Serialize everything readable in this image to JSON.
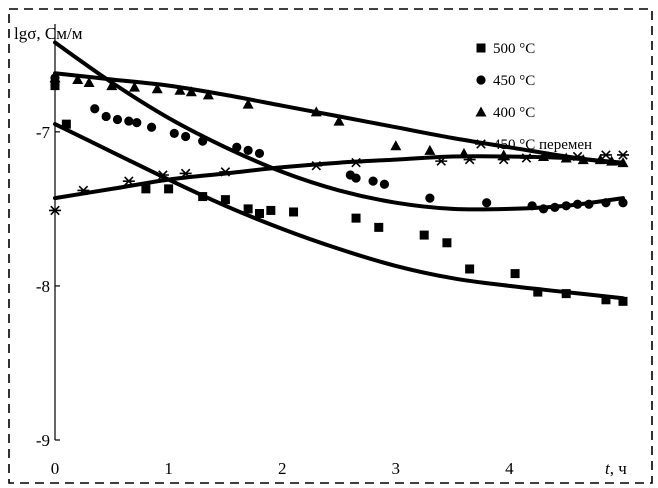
{
  "chart_data": {
    "type": "scatter",
    "title": "",
    "ylabel": "lgσ, См/м",
    "xlabel": "t, ч",
    "xlabel_var": "t",
    "xlabel_unit": ", ч",
    "xlim": [
      0,
      5
    ],
    "ylim": [
      -9,
      -6.3
    ],
    "x_ticks": [
      0,
      1,
      2,
      3,
      4
    ],
    "x_tick_labels": [
      "0",
      "1",
      "2",
      "3",
      "4"
    ],
    "y_ticks": [
      -7,
      -8,
      -9
    ],
    "y_tick_labels": [
      "-7",
      "-8",
      "-9"
    ],
    "grid": false,
    "legend_position": "top-right",
    "series": [
      {
        "name": "500 °C",
        "marker": "square",
        "points": [
          [
            0,
            -6.7
          ],
          [
            0.1,
            -6.95
          ],
          [
            0.8,
            -7.37
          ],
          [
            1.0,
            -7.37
          ],
          [
            1.3,
            -7.42
          ],
          [
            1.5,
            -7.44
          ],
          [
            1.7,
            -7.5
          ],
          [
            1.8,
            -7.53
          ],
          [
            1.9,
            -7.51
          ],
          [
            2.1,
            -7.52
          ],
          [
            2.65,
            -7.56
          ],
          [
            2.85,
            -7.62
          ],
          [
            3.25,
            -7.67
          ],
          [
            3.45,
            -7.72
          ],
          [
            3.65,
            -7.89
          ],
          [
            4.05,
            -7.92
          ],
          [
            4.25,
            -8.04
          ],
          [
            4.5,
            -8.05
          ],
          [
            4.85,
            -8.09
          ],
          [
            5.0,
            -8.1
          ]
        ],
        "trend": [
          [
            0,
            -6.95
          ],
          [
            0.5,
            -7.13
          ],
          [
            1,
            -7.31
          ],
          [
            1.5,
            -7.48
          ],
          [
            2,
            -7.63
          ],
          [
            2.5,
            -7.76
          ],
          [
            3,
            -7.87
          ],
          [
            3.5,
            -7.95
          ],
          [
            4,
            -8.0
          ],
          [
            4.5,
            -8.04
          ],
          [
            5,
            -8.08
          ]
        ]
      },
      {
        "name": "450 °C",
        "marker": "circle",
        "points": [
          [
            0,
            -6.65
          ],
          [
            0.35,
            -6.85
          ],
          [
            0.45,
            -6.9
          ],
          [
            0.55,
            -6.92
          ],
          [
            0.65,
            -6.93
          ],
          [
            0.72,
            -6.94
          ],
          [
            0.85,
            -6.97
          ],
          [
            1.05,
            -7.01
          ],
          [
            1.15,
            -7.03
          ],
          [
            1.3,
            -7.06
          ],
          [
            1.6,
            -7.1
          ],
          [
            1.7,
            -7.12
          ],
          [
            1.8,
            -7.14
          ],
          [
            2.6,
            -7.28
          ],
          [
            2.65,
            -7.3
          ],
          [
            2.8,
            -7.32
          ],
          [
            2.9,
            -7.34
          ],
          [
            3.3,
            -7.43
          ],
          [
            3.8,
            -7.46
          ],
          [
            4.2,
            -7.48
          ],
          [
            4.3,
            -7.5
          ],
          [
            4.4,
            -7.49
          ],
          [
            4.5,
            -7.48
          ],
          [
            4.6,
            -7.47
          ],
          [
            4.7,
            -7.47
          ],
          [
            4.85,
            -7.46
          ],
          [
            5.0,
            -7.46
          ]
        ],
        "trend": [
          [
            0,
            -6.42
          ],
          [
            0.5,
            -6.68
          ],
          [
            1,
            -6.91
          ],
          [
            1.5,
            -7.1
          ],
          [
            2,
            -7.26
          ],
          [
            2.5,
            -7.38
          ],
          [
            3,
            -7.46
          ],
          [
            3.5,
            -7.5
          ],
          [
            4,
            -7.5
          ],
          [
            4.5,
            -7.48
          ],
          [
            5,
            -7.43
          ]
        ]
      },
      {
        "name": "400 °C",
        "marker": "triangle",
        "points": [
          [
            0,
            -6.65
          ],
          [
            0.2,
            -6.66
          ],
          [
            0.3,
            -6.68
          ],
          [
            0.5,
            -6.7
          ],
          [
            0.7,
            -6.71
          ],
          [
            0.9,
            -6.72
          ],
          [
            1.1,
            -6.73
          ],
          [
            1.2,
            -6.74
          ],
          [
            1.35,
            -6.76
          ],
          [
            1.7,
            -6.82
          ],
          [
            2.3,
            -6.87
          ],
          [
            2.5,
            -6.93
          ],
          [
            3.0,
            -7.09
          ],
          [
            3.3,
            -7.12
          ],
          [
            3.6,
            -7.14
          ],
          [
            3.95,
            -7.15
          ],
          [
            4.3,
            -7.16
          ],
          [
            4.5,
            -7.17
          ],
          [
            4.65,
            -7.18
          ],
          [
            4.8,
            -7.18
          ],
          [
            4.9,
            -7.19
          ],
          [
            5.0,
            -7.2
          ]
        ],
        "trend": [
          [
            0,
            -6.62
          ],
          [
            0.5,
            -6.66
          ],
          [
            1,
            -6.7
          ],
          [
            1.5,
            -6.76
          ],
          [
            2,
            -6.83
          ],
          [
            2.5,
            -6.9
          ],
          [
            3,
            -6.97
          ],
          [
            3.5,
            -7.04
          ],
          [
            4,
            -7.1
          ],
          [
            4.5,
            -7.16
          ],
          [
            5,
            -7.21
          ]
        ]
      },
      {
        "name": "450 °С перемен",
        "marker": "asterisk",
        "points": [
          [
            0,
            -7.51
          ],
          [
            0.25,
            -7.38
          ],
          [
            0.65,
            -7.32
          ],
          [
            0.95,
            -7.28
          ],
          [
            1.15,
            -7.27
          ],
          [
            1.5,
            -7.26
          ],
          [
            2.3,
            -7.22
          ],
          [
            2.65,
            -7.2
          ],
          [
            3.4,
            -7.19
          ],
          [
            3.65,
            -7.18
          ],
          [
            3.95,
            -7.18
          ],
          [
            4.15,
            -7.17
          ],
          [
            4.6,
            -7.16
          ],
          [
            4.85,
            -7.15
          ],
          [
            5.0,
            -7.15
          ]
        ],
        "trend": [
          [
            0,
            -7.43
          ],
          [
            0.5,
            -7.37
          ],
          [
            1,
            -7.31
          ],
          [
            1.5,
            -7.27
          ],
          [
            2,
            -7.23
          ],
          [
            2.5,
            -7.2
          ],
          [
            3,
            -7.18
          ],
          [
            3.5,
            -7.16
          ],
          [
            4,
            -7.16
          ],
          [
            4.5,
            -7.17
          ],
          [
            5,
            -7.2
          ]
        ]
      }
    ]
  }
}
